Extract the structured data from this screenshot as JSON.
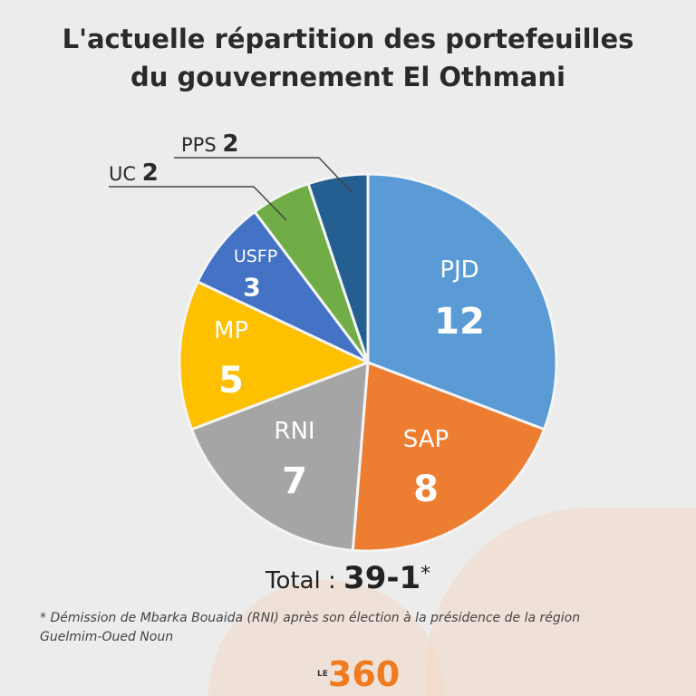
{
  "title_line1": "L'actuelle répartition des portefeuilles",
  "title_line2": "du gouvernement El Othmani",
  "chart_data": {
    "type": "pie",
    "title": "L'actuelle répartition des portefeuilles du gouvernement El Othmani",
    "categories": [
      "PJD",
      "SAP",
      "RNI",
      "MP",
      "USFP",
      "UC",
      "PPS"
    ],
    "values": [
      12,
      8,
      7,
      5,
      3,
      2,
      2
    ],
    "colors": [
      "#5b9bd5",
      "#ed7d31",
      "#a5a5a5",
      "#ffc000",
      "#4472c4",
      "#70ad47",
      "#255e91"
    ],
    "value_labels": [
      "12",
      "8",
      "7",
      "5",
      "3",
      "2",
      "2"
    ]
  },
  "total_label": "Total :",
  "total_value": "39-1",
  "total_mark": "*",
  "footnote_line1": "* Démission de Mbarka Bouaida (RNI) après son élection à la présidence de la région",
  "footnote_line2": "Guelmim-Oued Noun",
  "logo_le": "LE",
  "logo_num": "360"
}
